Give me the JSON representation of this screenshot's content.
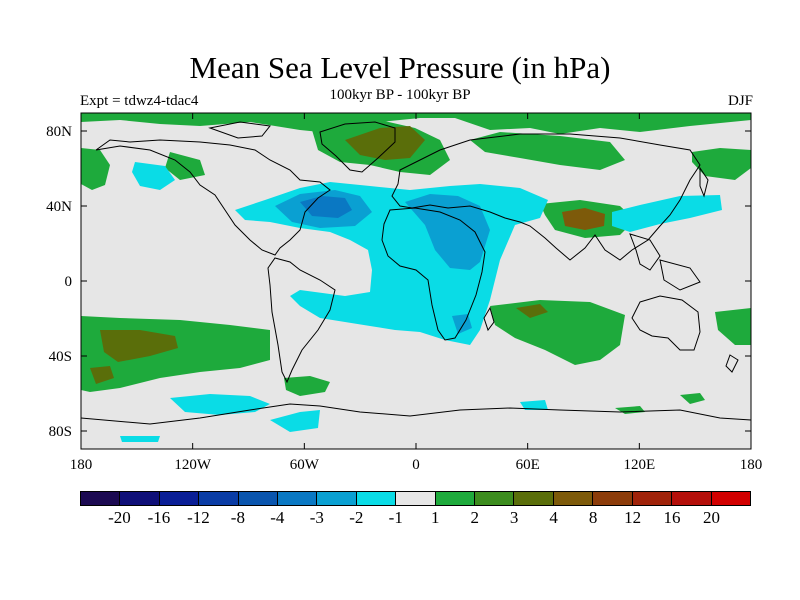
{
  "title": "Mean Sea Level Pressure (in hPa)",
  "subtitle": "100kyr BP - 100kyr BP",
  "expt_label": "Expt = tdwz4-tdac4",
  "season": "DJF",
  "axes": {
    "x_ticks": [
      "180",
      "120W",
      "60W",
      "0",
      "60E",
      "120E",
      "180"
    ],
    "y_ticks": [
      "80N",
      "40N",
      "0",
      "40S",
      "80S"
    ]
  },
  "colorbar": {
    "colors": [
      "#1c0a52",
      "#0f0f78",
      "#0a1e96",
      "#0a3ca5",
      "#0a55ae",
      "#0a78c3",
      "#0aa0d2",
      "#0adce6",
      "#e6e6e6",
      "#1eaa3c",
      "#3c8c1e",
      "#5a6e0a",
      "#7d5a0a",
      "#8c3c0a",
      "#a0230a",
      "#b40f0a",
      "#d20000"
    ],
    "labels": [
      "-20",
      "-16",
      "-12",
      "-8",
      "-4",
      "-3",
      "-2",
      "-1",
      "1",
      "2",
      "3",
      "4",
      "8",
      "12",
      "16",
      "20"
    ]
  },
  "colors": {
    "background_zero": "#e6e6e6",
    "neg_light": "#0adce6",
    "neg_medium": "#0aa0d2",
    "neg_strong": "#0a78c3",
    "pos_light": "#1eaa3c",
    "pos_medium": "#3c8c1e",
    "pos_strong": "#7d5a0a"
  }
}
